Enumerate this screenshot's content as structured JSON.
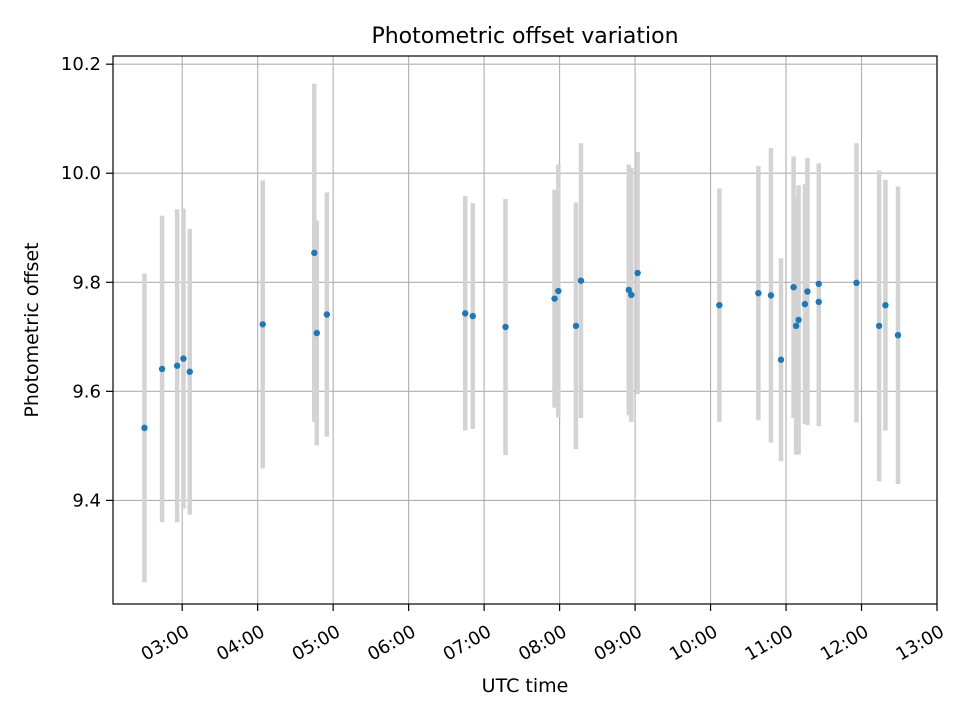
{
  "chart_data": {
    "type": "scatter",
    "title": "Photometric offset variation",
    "xlabel": "UTC time",
    "ylabel": "Photometric offset",
    "x_tick_labels": [
      "03:00",
      "04:00",
      "05:00",
      "06:00",
      "07:00",
      "08:00",
      "09:00",
      "10:00",
      "11:00",
      "12:00",
      "13:00"
    ],
    "y_tick_labels": [
      "9.4",
      "9.6",
      "9.8",
      "10.0",
      "10.2"
    ],
    "y_ticks": [
      9.4,
      9.6,
      9.8,
      10.0,
      10.2
    ],
    "x_ticks": [
      "03:00",
      "04:00",
      "05:00",
      "06:00",
      "07:00",
      "08:00",
      "09:00",
      "10:00",
      "11:00",
      "12:00",
      "13:00"
    ],
    "xlim": [
      "02:05",
      "13:00"
    ],
    "ylim": [
      9.21,
      10.215
    ],
    "grid": true,
    "marker_color": "#1f77b4",
    "errorbar_color": "#d3d3d3",
    "points": [
      {
        "x": "02:30",
        "y": 9.533,
        "yerr": 0.283
      },
      {
        "x": "02:44",
        "y": 9.641,
        "yerr": 0.281
      },
      {
        "x": "02:56",
        "y": 9.647,
        "yerr": 0.287
      },
      {
        "x": "03:01",
        "y": 9.66,
        "yerr": 0.275
      },
      {
        "x": "03:06",
        "y": 9.636,
        "yerr": 0.262
      },
      {
        "x": "04:04",
        "y": 9.723,
        "yerr": 0.264
      },
      {
        "x": "04:45",
        "y": 9.854,
        "yerr": 0.31
      },
      {
        "x": "04:47",
        "y": 9.707,
        "yerr": 0.206
      },
      {
        "x": "04:55",
        "y": 9.741,
        "yerr": 0.224
      },
      {
        "x": "06:45",
        "y": 9.743,
        "yerr": 0.215
      },
      {
        "x": "06:51",
        "y": 9.738,
        "yerr": 0.207
      },
      {
        "x": "07:17",
        "y": 9.718,
        "yerr": 0.235
      },
      {
        "x": "07:56",
        "y": 9.77,
        "yerr": 0.2
      },
      {
        "x": "07:59",
        "y": 9.784,
        "yerr": 0.232
      },
      {
        "x": "08:13",
        "y": 9.72,
        "yerr": 0.226
      },
      {
        "x": "08:17",
        "y": 9.803,
        "yerr": 0.252
      },
      {
        "x": "08:55",
        "y": 9.786,
        "yerr": 0.23
      },
      {
        "x": "08:57",
        "y": 9.777,
        "yerr": 0.233
      },
      {
        "x": "09:02",
        "y": 9.817,
        "yerr": 0.222
      },
      {
        "x": "10:07",
        "y": 9.758,
        "yerr": 0.214
      },
      {
        "x": "10:38",
        "y": 9.78,
        "yerr": 0.233
      },
      {
        "x": "10:48",
        "y": 9.776,
        "yerr": 0.27
      },
      {
        "x": "10:56",
        "y": 9.658,
        "yerr": 0.186
      },
      {
        "x": "11:06",
        "y": 9.791,
        "yerr": 0.24
      },
      {
        "x": "11:08",
        "y": 9.72,
        "yerr": 0.236
      },
      {
        "x": "11:10",
        "y": 9.731,
        "yerr": 0.247
      },
      {
        "x": "11:15",
        "y": 9.76,
        "yerr": 0.22
      },
      {
        "x": "11:17",
        "y": 9.783,
        "yerr": 0.245
      },
      {
        "x": "11:26",
        "y": 9.797,
        "yerr": 0.221
      },
      {
        "x": "11:26",
        "y": 9.764,
        "yerr": 0.228
      },
      {
        "x": "11:56",
        "y": 9.799,
        "yerr": 0.256
      },
      {
        "x": "12:14",
        "y": 9.72,
        "yerr": 0.285
      },
      {
        "x": "12:19",
        "y": 9.758,
        "yerr": 0.23
      },
      {
        "x": "12:29",
        "y": 9.703,
        "yerr": 0.273
      }
    ]
  }
}
